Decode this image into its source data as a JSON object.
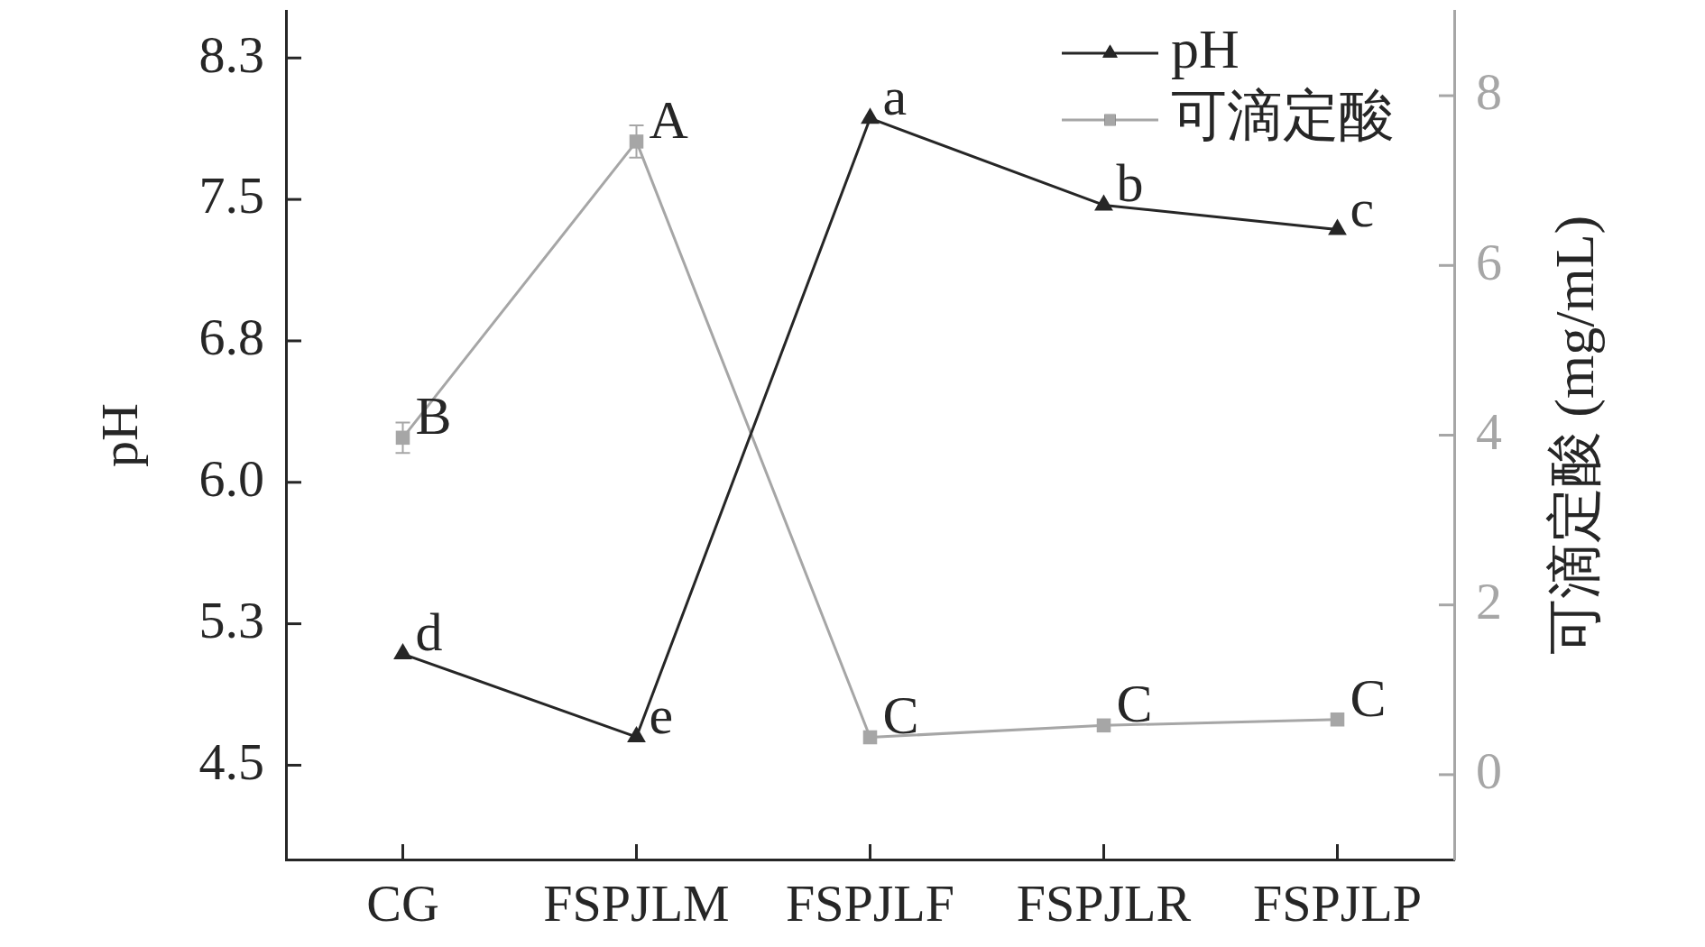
{
  "chart_data": {
    "type": "line",
    "categories": [
      "CG",
      "FSPJLM",
      "FSPJLF",
      "FSPJLR",
      "FSPJLP"
    ],
    "series": [
      {
        "name": "pH",
        "color": "#262626",
        "marker": "triangle",
        "values": [
          5.09,
          4.65,
          7.93,
          7.47,
          7.34
        ],
        "value_labels": [
          "d",
          "e",
          "a",
          "b",
          "c"
        ]
      },
      {
        "name": "可滴定酸",
        "color": "#a6a6a6",
        "marker": "square",
        "axis": "y2",
        "values": [
          3.97,
          7.46,
          0.44,
          0.58,
          0.65
        ],
        "errors": [
          0.18,
          0.19,
          null,
          null,
          null
        ],
        "value_labels": [
          "B",
          "A",
          "C",
          "C",
          "C"
        ]
      }
    ],
    "ylabel": "pH",
    "y2label": "可滴定酸 (mg/mL)",
    "ylim": [
      4.0,
      8.5
    ],
    "yticks": [
      4.5,
      {
        "value": 5.25,
        "label": "5.3"
      },
      {
        "value": 6,
        "label": "6.0"
      },
      {
        "value": 6.75,
        "label": "6.8"
      },
      7.5,
      {
        "value": 8.25,
        "label": "8.3"
      }
    ],
    "y2lim": [
      -1,
      9
    ],
    "y2ticks": [
      0,
      2,
      4,
      6,
      8
    ],
    "legend": "top right",
    "line_style": "solid"
  }
}
